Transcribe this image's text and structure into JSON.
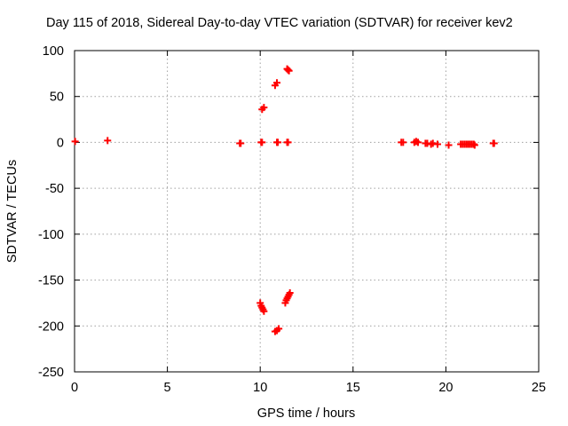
{
  "chart_data": {
    "type": "scatter",
    "title": "Day 115 of 2018, Sidereal Day-to-day VTEC variation (SDTVAR) for receiver kev2",
    "xlabel": "GPS time / hours",
    "ylabel": "SDTVAR / TECUs",
    "xlim": [
      0,
      25
    ],
    "ylim": [
      -250,
      100
    ],
    "xticks": [
      0,
      5,
      10,
      15,
      20,
      25
    ],
    "xtick_labels": [
      "0",
      "5",
      "10",
      "15",
      "20",
      "25"
    ],
    "yticks": [
      100,
      50,
      0,
      -50,
      -100,
      -150,
      -200,
      -250
    ],
    "ytick_labels": [
      "100",
      "50",
      "0",
      "-50",
      "-100",
      "-150",
      "-200",
      "-250"
    ],
    "grid": true,
    "marker": "+",
    "color": "#ff0000",
    "series": [
      {
        "name": "SDTVAR",
        "x": [
          0.03,
          1.78,
          8.9,
          8.95,
          10.05,
          10.1,
          10.9,
          10.95,
          11.45,
          11.5,
          10.1,
          10.2,
          10.8,
          10.9,
          11.45,
          11.5,
          11.55,
          10.0,
          10.05,
          10.1,
          10.15,
          10.2,
          10.8,
          10.9,
          11.0,
          11.35,
          11.4,
          11.45,
          11.5,
          11.55,
          11.6,
          17.6,
          17.7,
          18.3,
          18.4,
          18.5,
          18.9,
          19.0,
          19.2,
          19.3,
          19.55,
          20.15,
          20.8,
          20.9,
          21.0,
          21.1,
          21.2,
          21.3,
          21.4,
          21.5,
          21.55,
          22.55,
          22.6
        ],
        "y": [
          1,
          2,
          -1,
          -1,
          0,
          0,
          0,
          0,
          0,
          0,
          36,
          38,
          62,
          65,
          80,
          79,
          78,
          -175,
          -178,
          -180,
          -182,
          -184,
          -206,
          -205,
          -203,
          -175,
          -172,
          -170,
          -168,
          -166,
          -164,
          0,
          0,
          0,
          1,
          0,
          -1,
          -1,
          -2,
          -1,
          -2,
          -3,
          -2,
          -2,
          -2,
          -2,
          -2,
          -2,
          -2,
          -2,
          -3,
          -1,
          -1
        ]
      }
    ]
  }
}
